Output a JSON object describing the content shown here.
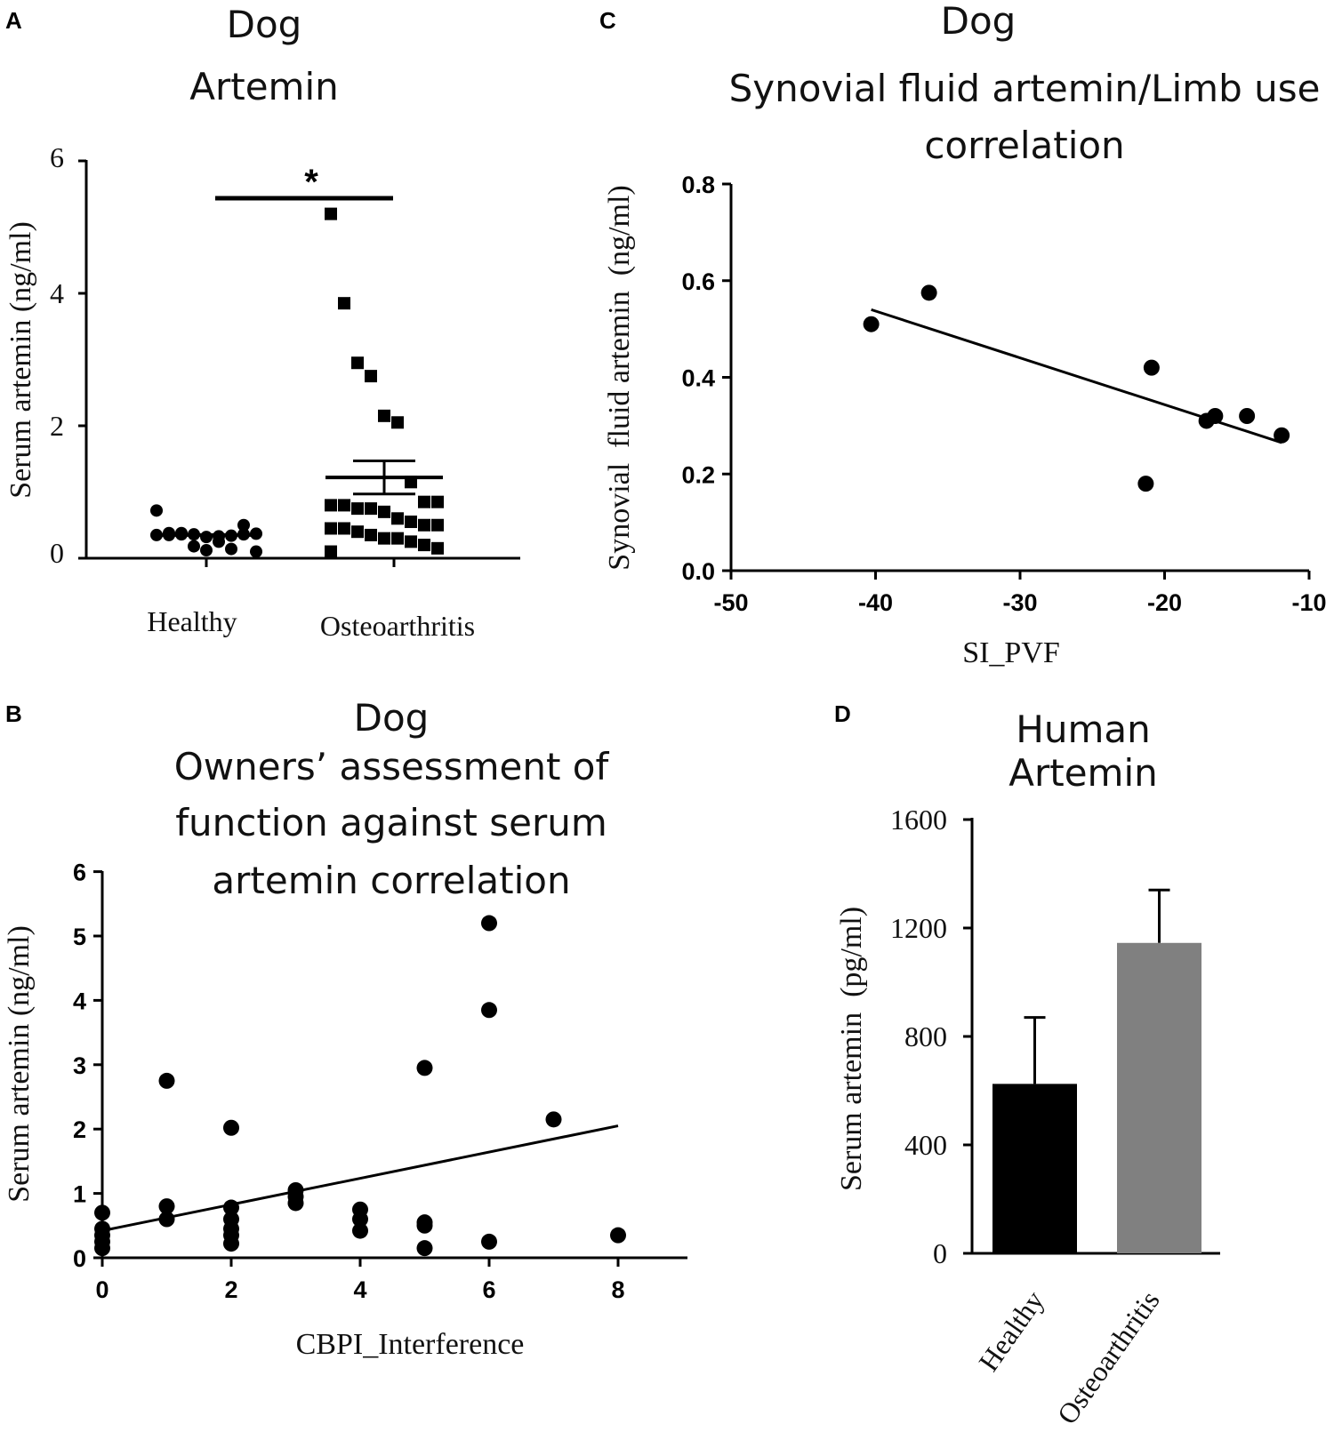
{
  "panels": {
    "A": {
      "label": "A"
    },
    "B": {
      "label": "B"
    },
    "C": {
      "label": "C"
    },
    "D": {
      "label": "D"
    }
  },
  "chart_data": [
    {
      "id": "A",
      "type": "scatter",
      "title_lines": [
        "Dog",
        "Artemin"
      ],
      "xlabel": "",
      "ylabel": "Serum artemin (ng/ml)",
      "categories": [
        "Healthy",
        "Osteoarthritis"
      ],
      "ylim": [
        0,
        6
      ],
      "yticks": [
        "0",
        "2",
        "4",
        "6"
      ],
      "annotation": "*",
      "series": [
        {
          "name": "Healthy",
          "marker": "circle",
          "mean": 0.35,
          "values": [
            0.72,
            0.35,
            0.38,
            0.36,
            0.32,
            0.33,
            0.34,
            0.36,
            0.37,
            0.35,
            0.38,
            0.36,
            0.18,
            0.12,
            0.25,
            0.14,
            0.5,
            0.1
          ]
        },
        {
          "name": "Osteoarthritis",
          "marker": "square",
          "mean": 1.22,
          "sem": 0.25,
          "values": [
            5.2,
            3.85,
            2.95,
            2.75,
            2.15,
            2.05,
            1.15,
            0.85,
            0.85,
            0.8,
            0.8,
            0.75,
            0.75,
            0.7,
            0.6,
            0.55,
            0.5,
            0.5,
            0.45,
            0.45,
            0.4,
            0.35,
            0.3,
            0.3,
            0.25,
            0.2,
            0.15,
            0.1
          ]
        }
      ]
    },
    {
      "id": "B",
      "type": "scatter",
      "title_lines": [
        "Dog",
        "Owners’ assessment of",
        "function against serum",
        "artemin correlation"
      ],
      "xlabel": "CBPI_Interference",
      "ylabel": "Serum artemin (ng/ml)",
      "xlim": [
        0,
        9
      ],
      "ylim": [
        0,
        6
      ],
      "xticks": [
        "0",
        "2",
        "4",
        "6",
        "8"
      ],
      "yticks": [
        "0",
        "1",
        "2",
        "3",
        "4",
        "5",
        "6"
      ],
      "points": [
        [
          0,
          0.7
        ],
        [
          0,
          0.45
        ],
        [
          0,
          0.35
        ],
        [
          0,
          0.25
        ],
        [
          0,
          0.15
        ],
        [
          1,
          2.75
        ],
        [
          1,
          0.8
        ],
        [
          1,
          0.6
        ],
        [
          2,
          2.02
        ],
        [
          2,
          0.78
        ],
        [
          2,
          0.6
        ],
        [
          2,
          0.45
        ],
        [
          2,
          0.35
        ],
        [
          2,
          0.22
        ],
        [
          3,
          1.05
        ],
        [
          3,
          0.95
        ],
        [
          3,
          0.85
        ],
        [
          4,
          0.75
        ],
        [
          4,
          0.6
        ],
        [
          4,
          0.42
        ],
        [
          5,
          2.95
        ],
        [
          5,
          0.55
        ],
        [
          5,
          0.5
        ],
        [
          5,
          0.15
        ],
        [
          6,
          5.2
        ],
        [
          6,
          3.85
        ],
        [
          6,
          0.25
        ],
        [
          7,
          2.15
        ],
        [
          8,
          0.35
        ]
      ],
      "fit": {
        "x": [
          0,
          8
        ],
        "y": [
          0.42,
          2.05
        ]
      }
    },
    {
      "id": "C",
      "type": "scatter",
      "title_lines": [
        "Dog",
        "Synovial fluid artemin/Limb use",
        "correlation"
      ],
      "xlabel": "SI_PVF",
      "ylabel": "Synovial  fluid artemin  (ng/ml)",
      "xlim": [
        -50,
        -10
      ],
      "ylim": [
        0,
        0.8
      ],
      "xticks": [
        "-50",
        "-40",
        "-30",
        "-20",
        "-10"
      ],
      "yticks": [
        "0.0",
        "0.2",
        "0.4",
        "0.6",
        "0.8"
      ],
      "points": [
        [
          -40.3,
          0.51
        ],
        [
          -36.3,
          0.575
        ],
        [
          -20.9,
          0.42
        ],
        [
          -21.3,
          0.18
        ],
        [
          -17.1,
          0.31
        ],
        [
          -16.5,
          0.32
        ],
        [
          -14.3,
          0.32
        ],
        [
          -11.9,
          0.28
        ]
      ],
      "fit": {
        "x": [
          -40.3,
          -11.9
        ],
        "y": [
          0.54,
          0.265
        ]
      }
    },
    {
      "id": "D",
      "type": "bar",
      "title_lines": [
        "Human",
        "Artemin"
      ],
      "xlabel": "",
      "ylabel": "Serum artemin  (pg/ml)",
      "categories": [
        "Healthy",
        "Osteoarthritis"
      ],
      "values": [
        625,
        1145
      ],
      "errors": [
        245,
        195
      ],
      "colors": [
        "#000000",
        "#808080"
      ],
      "ylim": [
        0,
        1600
      ],
      "yticks": [
        "0",
        "400",
        "800",
        "1200",
        "1600"
      ]
    }
  ]
}
